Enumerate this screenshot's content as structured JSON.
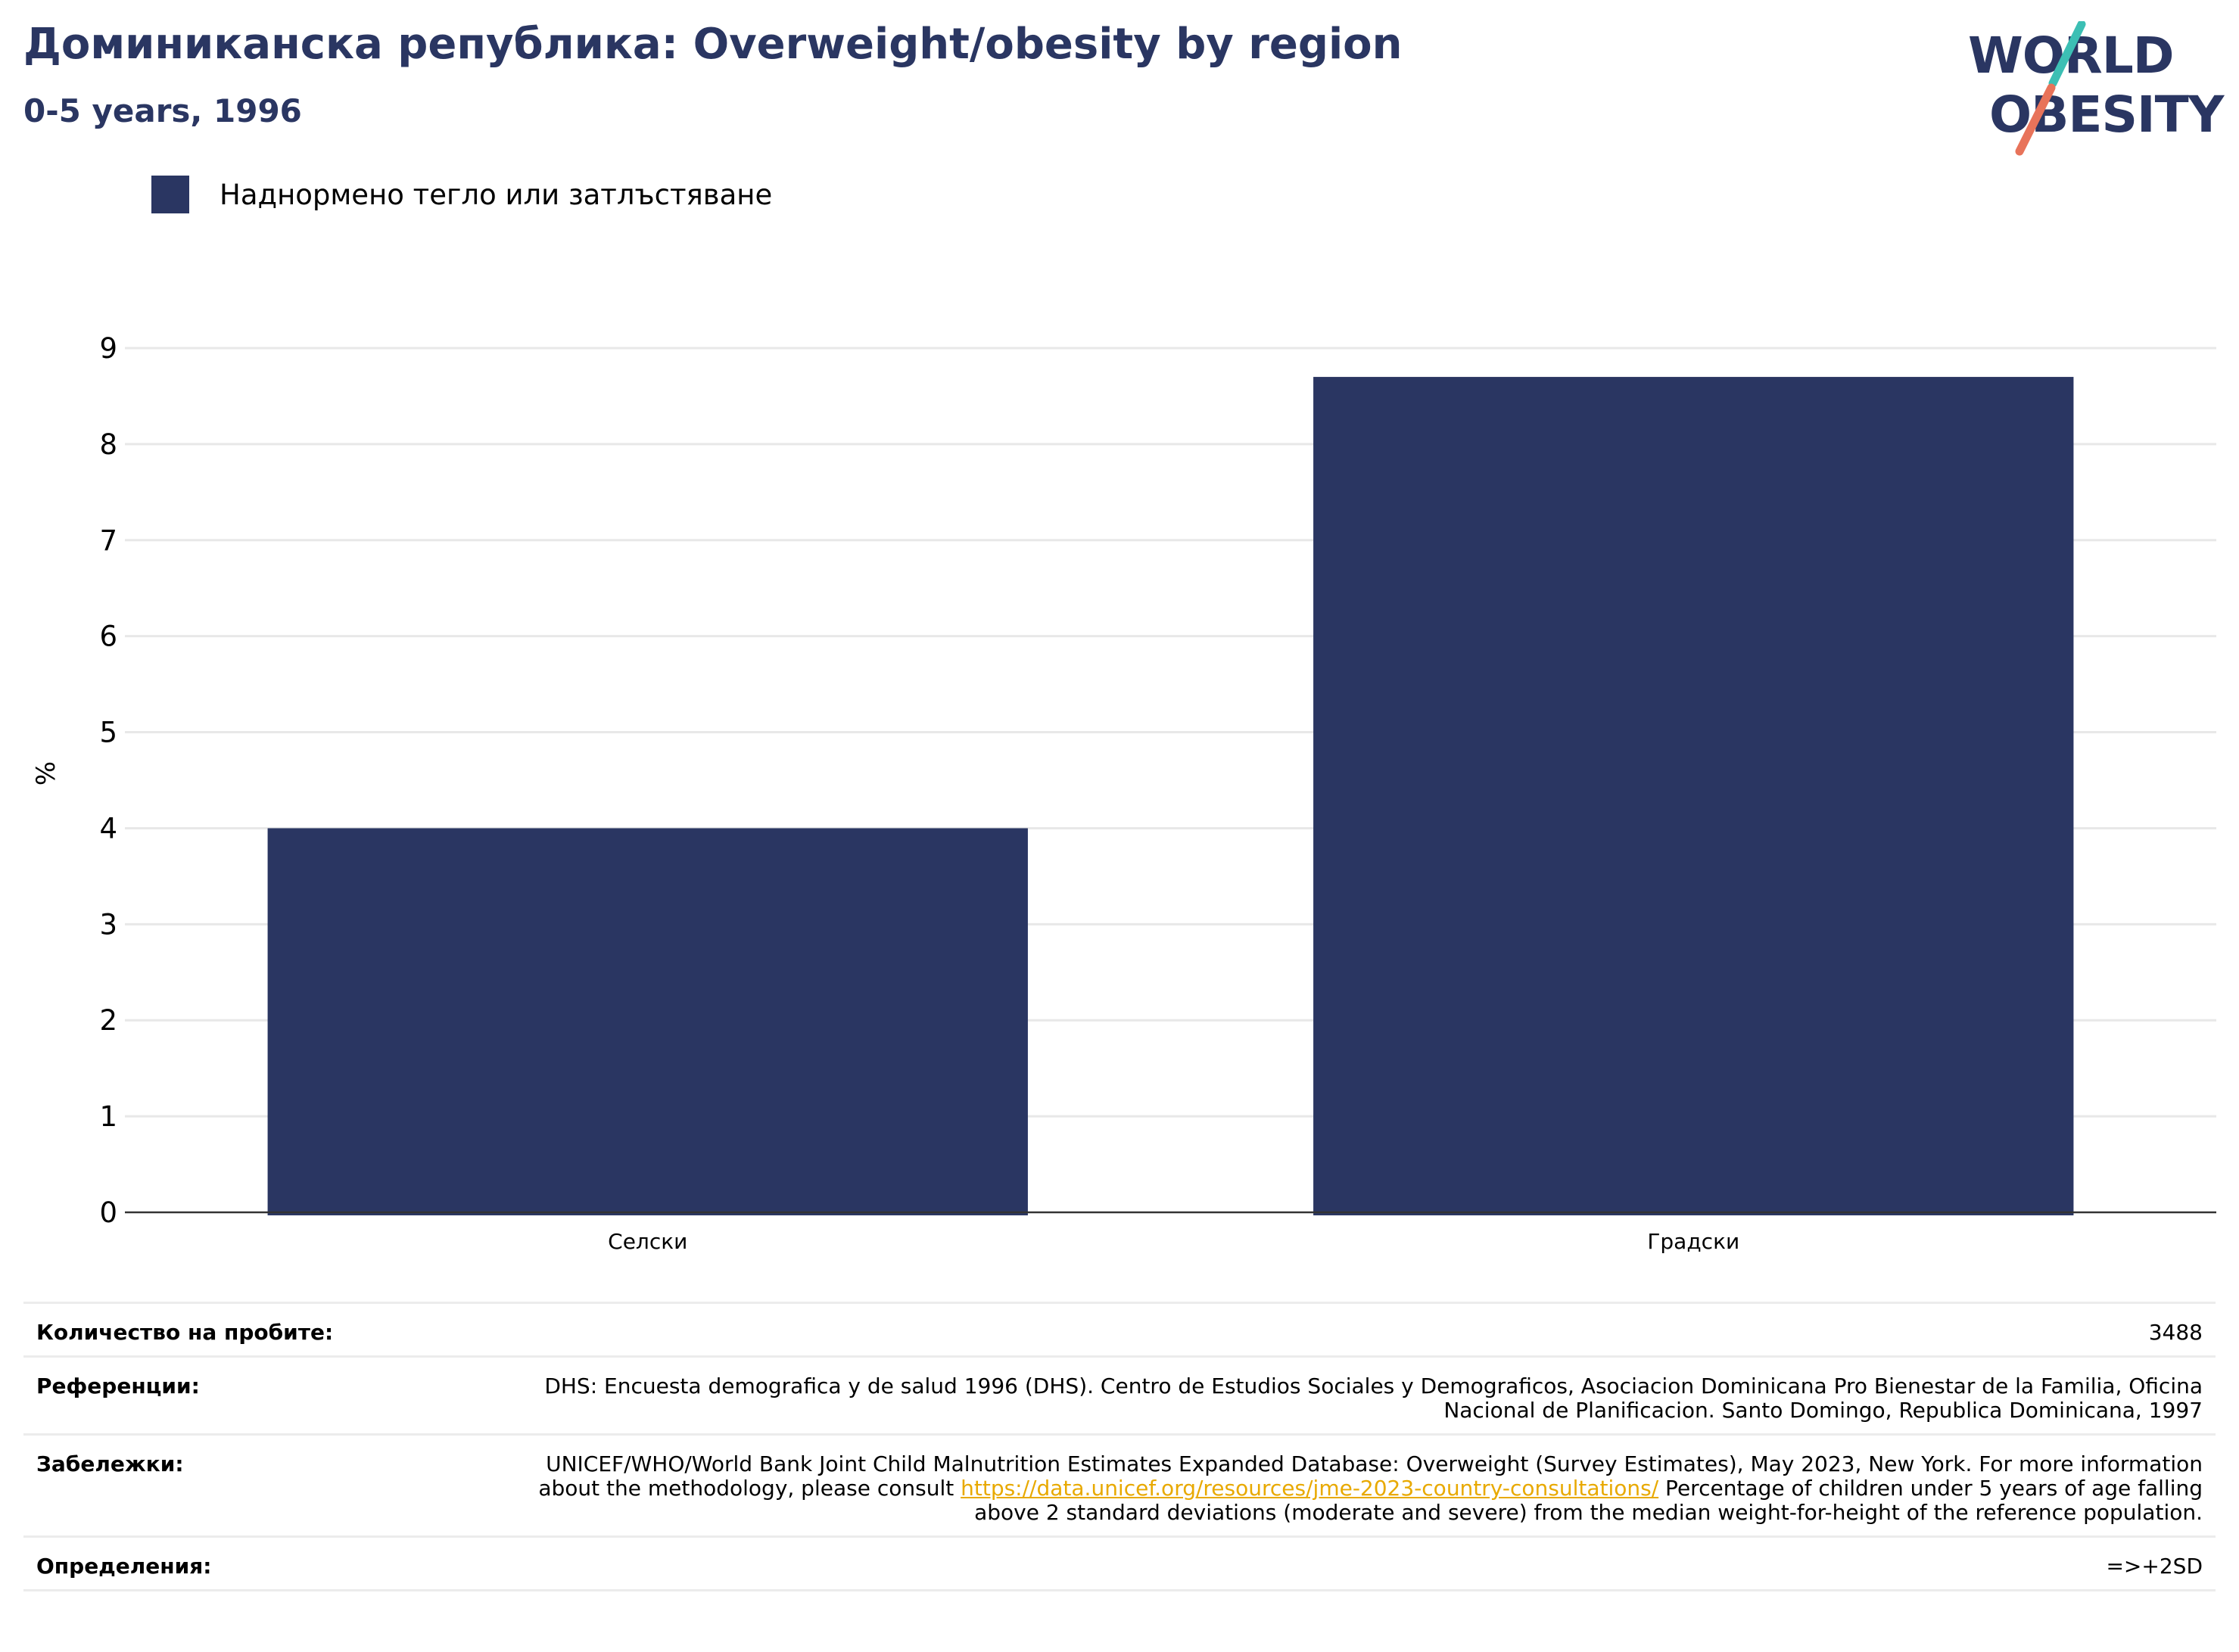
{
  "header": {
    "title": "Доминиканска република: Overweight/obesity by region",
    "subtitle": "0-5 years, 1996"
  },
  "logo": {
    "line1": "WORLD",
    "line2": "OBESITY",
    "colors": {
      "text": "#2a3662",
      "teal": "#3cbfb4",
      "coral": "#e8735a"
    }
  },
  "legend": {
    "label": "Наднормено тегло или затлъстяване",
    "color": "#2a3662"
  },
  "chart_data": {
    "type": "bar",
    "categories": [
      "Селски",
      "Градски"
    ],
    "series": [
      {
        "name": "Наднормено тегло или затлъстяване",
        "values": [
          4.0,
          8.7
        ],
        "color": "#2a3662"
      }
    ],
    "ylabel": "%",
    "ylim": [
      0,
      9
    ],
    "yticks": [
      "0",
      "1",
      "2",
      "3",
      "4",
      "5",
      "6",
      "7",
      "8",
      "9"
    ],
    "grid": true,
    "legend_position": "top-left"
  },
  "info": {
    "rows": [
      {
        "label": "Количество на пробите:",
        "value": "3488"
      },
      {
        "label": "Референции:",
        "value": "DHS: Encuesta demografica y de salud 1996 (DHS). Centro de Estudios Sociales y Demograficos, Asociacion Dominicana Pro Bienestar de la Familia, Oficina Nacional de Planificacion. Santo Domingo, Republica Dominicana, 1997"
      },
      {
        "label": "Забележки:",
        "value_before": "UNICEF/WHO/World Bank Joint Child Malnutrition Estimates Expanded Database: Overweight (Survey Estimates), May 2023, New York. For more information about the methodology, please consult ",
        "link": "https://data.unicef.org/resources/jme-2023-country-consultations/",
        "value_after": " Percentage of children under 5 years of age falling above 2 standard deviations (moderate and severe) from the median weight-for-height of the reference population."
      },
      {
        "label": "Определения:",
        "value": "=>+2SD"
      }
    ]
  }
}
